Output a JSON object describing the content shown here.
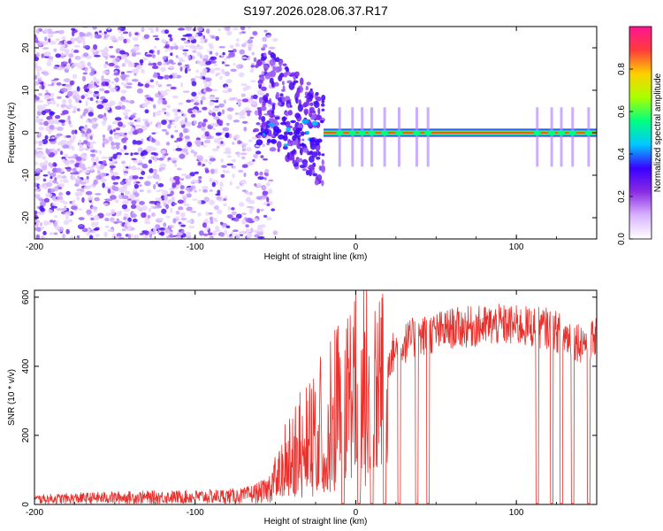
{
  "title": "S197.2026.028.06.37.R17",
  "colors": {
    "snr_line": "#e8302c",
    "cb_stops": [
      "#ffffff",
      "#d9b3ff",
      "#8a2be2",
      "#3a00ff",
      "#00c8ff",
      "#00ff80",
      "#aaff00",
      "#ffd000",
      "#ff3b3b",
      "#ff1493"
    ],
    "spec_bg": "#ffffff",
    "axis": "#000000"
  },
  "chart_data": [
    {
      "type": "heatmap",
      "name": "spectrogram",
      "xlabel": "Height of straight line (km)",
      "ylabel": "Frequency (Hz)",
      "xlim": [
        -200,
        150
      ],
      "ylim": [
        -25,
        25
      ],
      "xticks": [
        -200,
        -100,
        0,
        100
      ],
      "xtick_labels": [
        "-200",
        "-100",
        "0",
        "100"
      ],
      "yticks": [
        -20,
        -10,
        0,
        10,
        20
      ],
      "ytick_labels": [
        "-20",
        "-10",
        "0",
        "10",
        "20"
      ],
      "colorbar": {
        "label": "Normalized spectral amplitude",
        "range": [
          0,
          1
        ],
        "ticks": [
          0,
          0.2,
          0.4,
          0.6,
          0.8
        ],
        "tick_labels": [
          "0.0",
          "0.2",
          "0.4",
          "0.6",
          "0.8"
        ]
      },
      "features": {
        "noise_region_km": [
          -200,
          -55
        ],
        "transition_km": [
          -60,
          -20
        ],
        "tone_start_km": -20,
        "tone_freq_hz": 0
      }
    },
    {
      "type": "line",
      "name": "snr",
      "xlabel": "Height of straight line (km)",
      "ylabel": "SNR (10 * v/v)",
      "xlim": [
        -200,
        150
      ],
      "ylim": [
        0,
        620
      ],
      "xticks": [
        -200,
        -100,
        0,
        100
      ],
      "xtick_labels": [
        "-200",
        "-100",
        "0",
        "100"
      ],
      "yticks": [
        0,
        200,
        400,
        600
      ],
      "ytick_labels": [
        "0",
        "200",
        "400",
        "600"
      ],
      "profile": {
        "x": [
          -200,
          -150,
          -100,
          -70,
          -55,
          -42,
          -30,
          -20,
          -10,
          0,
          10,
          20,
          25,
          35,
          60,
          90,
          120,
          140,
          150
        ],
        "y": [
          15,
          20,
          22,
          25,
          40,
          150,
          200,
          250,
          300,
          350,
          400,
          420,
          450,
          480,
          510,
          520,
          510,
          470,
          480
        ]
      },
      "dropouts_km": [
        -8,
        2,
        10,
        18,
        27,
        38,
        45,
        113,
        122,
        128,
        135,
        145
      ]
    }
  ]
}
